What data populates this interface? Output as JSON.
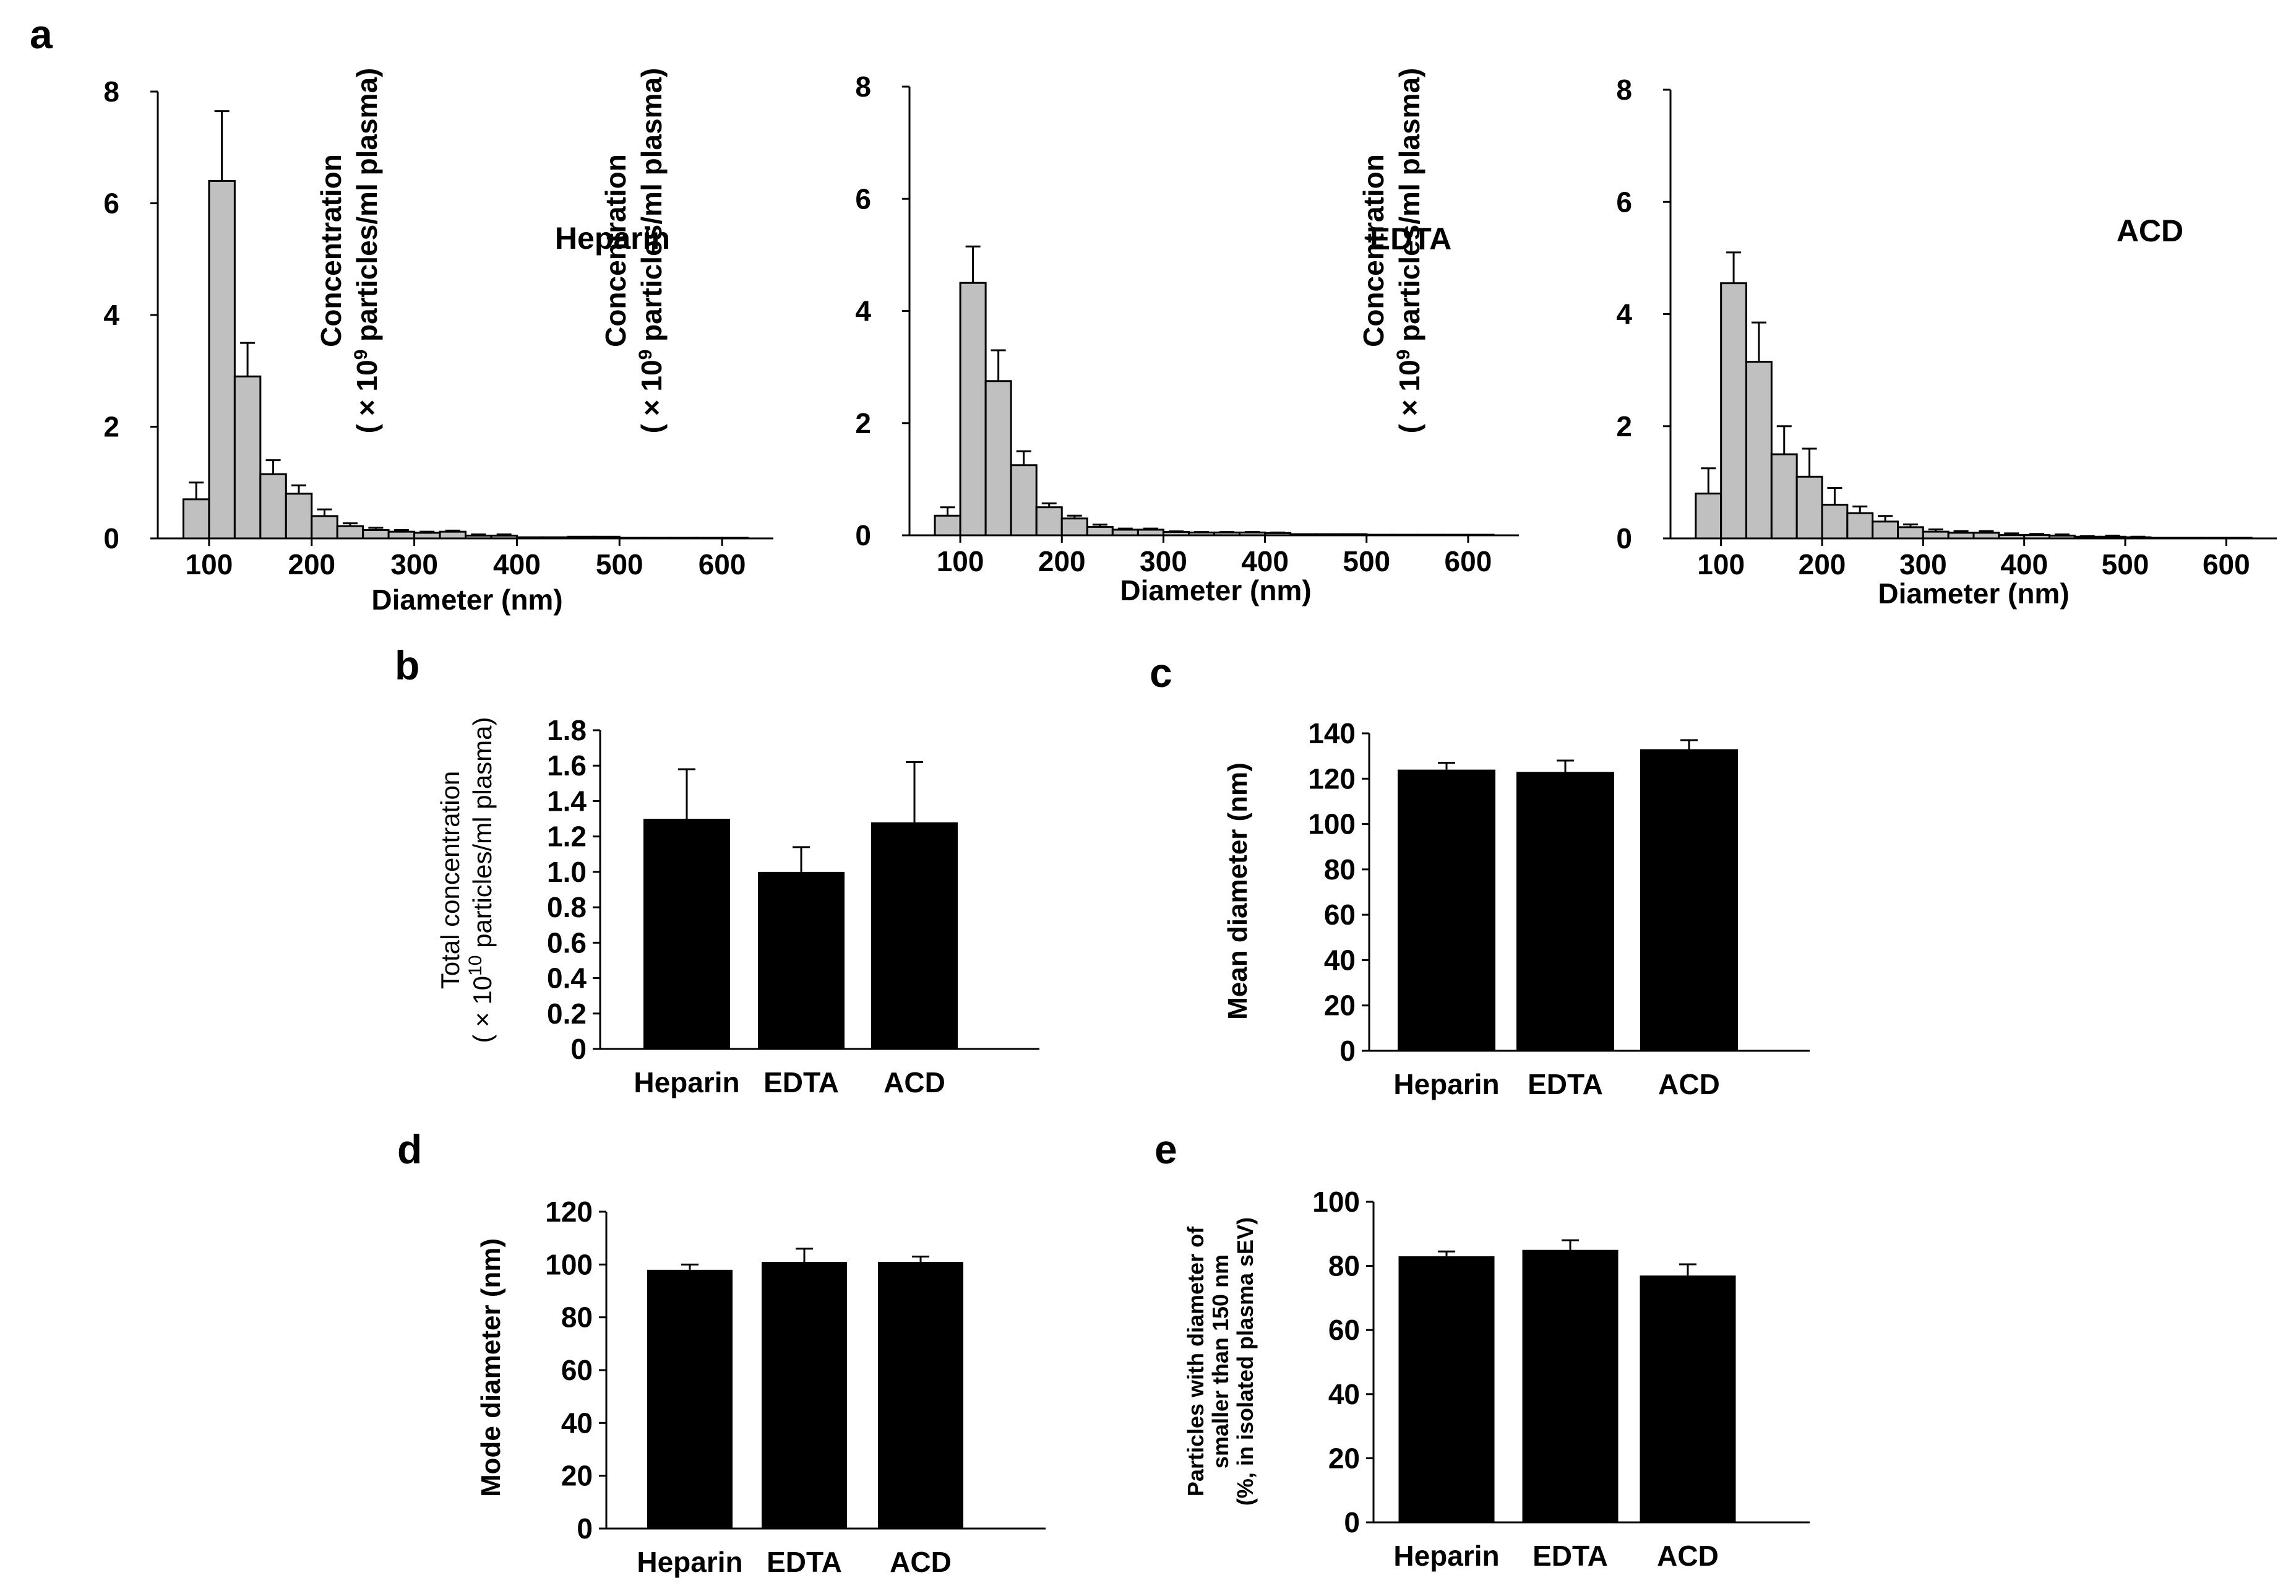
{
  "panels": [
    {
      "id": "a",
      "letter": "a"
    },
    {
      "id": "b",
      "letter": "b"
    },
    {
      "id": "c",
      "letter": "c"
    },
    {
      "id": "d",
      "letter": "d"
    },
    {
      "id": "e",
      "letter": "e"
    }
  ],
  "chart_data": [
    {
      "panel": "a",
      "type": "bar",
      "condition": "Heparin",
      "xlabel": "Diameter (nm)",
      "ylabel_lines": [
        "Concentration",
        "( × 10",
        "9",
        " particles/ml plasma)"
      ],
      "xlim": [
        50,
        650
      ],
      "ylim": [
        0,
        8
      ],
      "xticks": [
        100,
        200,
        300,
        400,
        500,
        600
      ],
      "yticks": [
        0,
        2,
        4,
        6,
        8
      ],
      "bin_width": 25,
      "bins": [
        87.5,
        112.5,
        137.5,
        162.5,
        187.5,
        212.5,
        237.5,
        262.5,
        287.5,
        312.5,
        337.5,
        362.5,
        387.5,
        412.5,
        437.5,
        462.5,
        487.5,
        512.5,
        537.5,
        562.5,
        587.5,
        612.5
      ],
      "values": [
        0.7,
        6.4,
        2.9,
        1.15,
        0.8,
        0.4,
        0.22,
        0.15,
        0.12,
        0.1,
        0.12,
        0.05,
        0.05,
        0.02,
        0.02,
        0.03,
        0.03,
        0.01,
        0.01,
        0.01,
        0.01,
        0.01
      ],
      "errors": [
        0.3,
        1.25,
        0.6,
        0.25,
        0.15,
        0.12,
        0.05,
        0.04,
        0.03,
        0.02,
        0.02,
        0.02,
        0.02,
        0,
        0,
        0,
        0,
        0,
        0,
        0,
        0,
        0
      ]
    },
    {
      "panel": "a",
      "type": "bar",
      "condition": "EDTA",
      "xlabel": "Diameter (nm)",
      "ylabel_lines": [
        "Concentration",
        "( × 10",
        "9",
        " particles/ml plasma)"
      ],
      "xlim": [
        50,
        650
      ],
      "ylim": [
        0,
        8
      ],
      "xticks": [
        100,
        200,
        300,
        400,
        500,
        600
      ],
      "yticks": [
        0,
        2,
        4,
        6,
        8
      ],
      "bin_width": 25,
      "bins": [
        87.5,
        112.5,
        137.5,
        162.5,
        187.5,
        212.5,
        237.5,
        262.5,
        287.5,
        312.5,
        337.5,
        362.5,
        387.5,
        412.5,
        437.5,
        462.5,
        487.5,
        512.5,
        537.5,
        562.5,
        587.5,
        612.5
      ],
      "values": [
        0.35,
        4.5,
        2.75,
        1.25,
        0.5,
        0.3,
        0.15,
        0.1,
        0.1,
        0.06,
        0.05,
        0.05,
        0.05,
        0.04,
        0.02,
        0.02,
        0.02,
        0.01,
        0.01,
        0.01,
        0.01,
        0.01
      ],
      "errors": [
        0.15,
        0.65,
        0.55,
        0.25,
        0.07,
        0.05,
        0.04,
        0.02,
        0.02,
        0.01,
        0.01,
        0.01,
        0.01,
        0.01,
        0,
        0,
        0,
        0,
        0,
        0,
        0,
        0
      ]
    },
    {
      "panel": "a",
      "type": "bar",
      "condition": "ACD",
      "xlabel": "Diameter (nm)",
      "ylabel_lines": [
        "Concentration",
        "( × 10",
        "9",
        " particles/ml plasma)"
      ],
      "xlim": [
        50,
        650
      ],
      "ylim": [
        0,
        8
      ],
      "xticks": [
        100,
        200,
        300,
        400,
        500,
        600
      ],
      "yticks": [
        0,
        2,
        4,
        6,
        8
      ],
      "bin_width": 25,
      "bins": [
        87.5,
        112.5,
        137.5,
        162.5,
        187.5,
        212.5,
        237.5,
        262.5,
        287.5,
        312.5,
        337.5,
        362.5,
        387.5,
        412.5,
        437.5,
        462.5,
        487.5,
        512.5,
        537.5,
        562.5,
        587.5,
        612.5
      ],
      "values": [
        0.8,
        4.55,
        3.15,
        1.5,
        1.1,
        0.6,
        0.45,
        0.3,
        0.2,
        0.12,
        0.1,
        0.1,
        0.06,
        0.06,
        0.05,
        0.03,
        0.03,
        0.02,
        0.01,
        0.01,
        0.01,
        0.01
      ],
      "errors": [
        0.45,
        0.55,
        0.7,
        0.5,
        0.5,
        0.3,
        0.12,
        0.1,
        0.05,
        0.04,
        0.03,
        0.03,
        0.03,
        0.02,
        0.02,
        0.01,
        0.02,
        0.01,
        0,
        0,
        0,
        0
      ]
    },
    {
      "panel": "b",
      "type": "bar",
      "categories": [
        "Heparin",
        "EDTA",
        "ACD"
      ],
      "values": [
        1.3,
        1.0,
        1.28
      ],
      "errors": [
        0.28,
        0.14,
        0.34
      ],
      "ylim": [
        0,
        1.8
      ],
      "yticks": [
        "0",
        "0.2",
        "0.4",
        "0.6",
        "0.8",
        "1.0",
        "1.2",
        "1.4",
        "1.6",
        "1.8"
      ],
      "ylabel_lines": [
        "Total concentration",
        "( × 10",
        "10",
        " particles/ml plasma)"
      ]
    },
    {
      "panel": "c",
      "type": "bar",
      "categories": [
        "Heparin",
        "EDTA",
        "ACD"
      ],
      "values": [
        124,
        123,
        133
      ],
      "errors": [
        3,
        5,
        4
      ],
      "ylim": [
        0,
        140
      ],
      "yticks": [
        "0",
        "20",
        "40",
        "60",
        "80",
        "100",
        "120",
        "140"
      ],
      "ylabel_lines": [
        "Mean diameter (nm)"
      ]
    },
    {
      "panel": "d",
      "type": "bar",
      "categories": [
        "Heparin",
        "EDTA",
        "ACD"
      ],
      "values": [
        98,
        101,
        101
      ],
      "errors": [
        2,
        5,
        2
      ],
      "ylim": [
        0,
        120
      ],
      "yticks": [
        "0",
        "20",
        "40",
        "60",
        "80",
        "100",
        "120"
      ],
      "ylabel_lines": [
        "Mode diameter (nm)"
      ]
    },
    {
      "panel": "e",
      "type": "bar",
      "categories": [
        "Heparin",
        "EDTA",
        "ACD"
      ],
      "values": [
        83,
        85,
        77
      ],
      "errors": [
        1.5,
        3,
        3.5
      ],
      "ylim": [
        0,
        100
      ],
      "yticks": [
        "0",
        "20",
        "40",
        "60",
        "80",
        "100"
      ],
      "ylabel_lines": [
        "Particles with diameter of",
        "smaller than 150 nm",
        "(%, in isolated plasma sEV)"
      ]
    }
  ]
}
